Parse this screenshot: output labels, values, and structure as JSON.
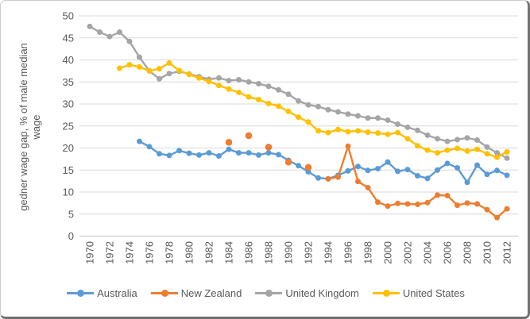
{
  "chart_data": {
    "type": "line",
    "title": "",
    "ylabel": "gedner wage gap, % of male median wage",
    "ylabel_lines": [
      "gedner wage gap, % of male median",
      "wage"
    ],
    "xlabel": "",
    "ylim": [
      0,
      50
    ],
    "grid": true,
    "legend_position": "bottom",
    "y_ticks": [
      "0",
      "5",
      "10",
      "15",
      "20",
      "25",
      "30",
      "35",
      "40",
      "45",
      "50"
    ],
    "x_ticks": [
      "1970",
      "1972",
      "1974",
      "1976",
      "1978",
      "1980",
      "1982",
      "1984",
      "1986",
      "1988",
      "1990",
      "1992",
      "1994",
      "1996",
      "1998",
      "2000",
      "2002",
      "2004",
      "2006",
      "2008",
      "2010",
      "2012"
    ],
    "colors": {
      "australia": "#5B9BD5",
      "new_zealand": "#ED7D31",
      "united_kingdom": "#A5A5A5",
      "united_states": "#FFC000",
      "gridline": "#D9D9D9",
      "axis_line": "#BFBFBF",
      "text": "#595959"
    },
    "series": [
      {
        "name": "Australia",
        "color": "#5B9BD5",
        "segments": [
          {
            "years": [
              1975,
              1976,
              1977,
              1978,
              1979,
              1980,
              1981,
              1982,
              1983,
              1984,
              1985,
              1986,
              1987,
              1988,
              1989,
              1990,
              1991,
              1992,
              1993,
              1994,
              1995,
              1996,
              1997,
              1998,
              1999,
              2000,
              2001,
              2002,
              2003,
              2004,
              2005,
              2006,
              2007,
              2008,
              2009,
              2010,
              2011,
              2012
            ],
            "values": [
              21.5,
              20.3,
              18.7,
              18.3,
              19.4,
              18.8,
              18.4,
              18.9,
              18.2,
              19.7,
              18.9,
              18.9,
              18.4,
              18.9,
              18.5,
              17.2,
              16.0,
              14.6,
              13.2,
              13.0,
              13.8,
              14.8,
              15.8,
              14.9,
              15.3,
              16.8,
              14.7,
              15.1,
              13.7,
              13.1,
              15.0,
              16.5,
              15.5,
              12.2,
              16.1,
              14.0,
              14.9,
              13.8
            ]
          }
        ]
      },
      {
        "name": "New Zealand",
        "color": "#ED7D31",
        "segments": [
          {
            "years": [
              1984
            ],
            "values": [
              21.3
            ]
          },
          {
            "years": [
              1986
            ],
            "values": [
              22.8
            ]
          },
          {
            "years": [
              1988
            ],
            "values": [
              20.2
            ]
          },
          {
            "years": [
              1990
            ],
            "values": [
              16.8
            ]
          },
          {
            "years": [
              1992
            ],
            "values": [
              15.6
            ]
          },
          {
            "years": [
              1994,
              1995,
              1996,
              1997,
              1998,
              1999,
              2000,
              2001,
              2002,
              2003,
              2004,
              2005,
              2006,
              2007,
              2008,
              2009,
              2010,
              2011,
              2012
            ],
            "values": [
              13.0,
              13.4,
              20.4,
              12.4,
              11.0,
              7.7,
              6.8,
              7.4,
              7.3,
              7.2,
              7.6,
              9.3,
              9.2,
              7.0,
              7.5,
              7.3,
              6.0,
              4.2,
              6.2
            ]
          }
        ]
      },
      {
        "name": "United Kingdom",
        "color": "#A5A5A5",
        "segments": [
          {
            "years": [
              1970,
              1971,
              1972,
              1973,
              1974,
              1975,
              1976,
              1977,
              1978,
              1979,
              1980,
              1981,
              1982,
              1983,
              1984,
              1985,
              1986,
              1987,
              1988,
              1989,
              1990,
              1991,
              1992,
              1993,
              1994,
              1995,
              1996,
              1997,
              1998,
              1999,
              2000,
              2001,
              2002,
              2003,
              2004,
              2005,
              2006,
              2007,
              2008,
              2009,
              2010,
              2011,
              2012
            ],
            "values": [
              47.6,
              46.3,
              45.3,
              46.3,
              44.2,
              40.6,
              37.5,
              35.7,
              36.9,
              37.4,
              36.8,
              36.2,
              35.6,
              35.9,
              35.3,
              35.5,
              35.0,
              34.6,
              34.0,
              33.2,
              32.2,
              30.7,
              29.8,
              29.4,
              28.7,
              28.2,
              27.7,
              27.3,
              26.8,
              26.8,
              26.3,
              25.4,
              24.7,
              24.0,
              22.9,
              22.1,
              21.5,
              21.9,
              22.3,
              21.8,
              20.2,
              18.9,
              17.7
            ]
          }
        ]
      },
      {
        "name": "United States",
        "color": "#FFC000",
        "segments": [
          {
            "years": [
              1973,
              1974,
              1975,
              1976,
              1977,
              1978,
              1979,
              1980,
              1981,
              1982,
              1983,
              1984,
              1985,
              1986,
              1987,
              1988,
              1989,
              1990,
              1991,
              1992,
              1993,
              1994,
              1995,
              1996,
              1997,
              1998,
              1999,
              2000,
              2001,
              2002,
              2003,
              2004,
              2005,
              2006,
              2007,
              2008,
              2009,
              2010,
              2011,
              2012
            ],
            "values": [
              38.1,
              38.9,
              38.4,
              37.5,
              38.0,
              39.3,
              37.6,
              36.7,
              35.9,
              35.1,
              34.2,
              33.4,
              32.6,
              31.6,
              31.0,
              30.1,
              29.5,
              28.3,
              27.0,
              25.9,
              23.9,
              23.5,
              24.2,
              23.7,
              23.9,
              23.6,
              23.4,
              23.1,
              23.5,
              22.1,
              20.5,
              19.5,
              18.9,
              19.5,
              19.9,
              19.3,
              19.7,
              18.7,
              17.9,
              19.1
            ]
          }
        ]
      }
    ]
  }
}
